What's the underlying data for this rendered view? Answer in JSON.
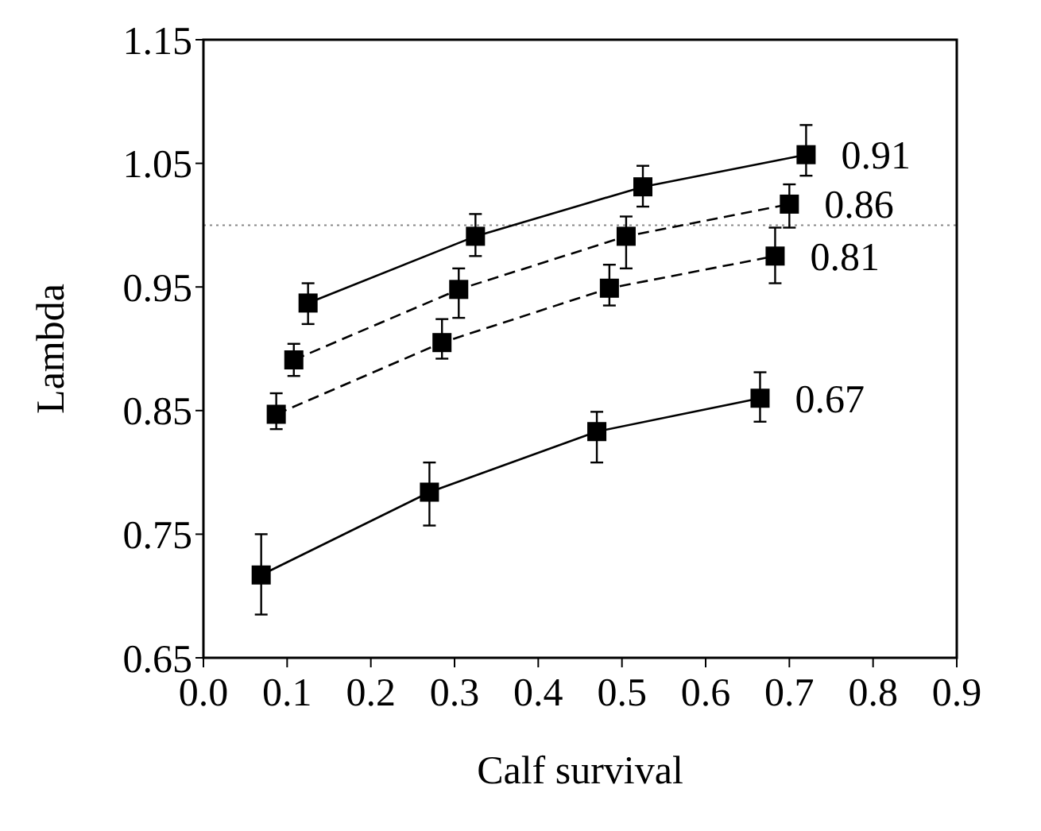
{
  "chart_data": {
    "type": "line",
    "xlabel": "Calf survival",
    "ylabel": "Lambda",
    "xlim": [
      0,
      0.9
    ],
    "xticks": [
      {
        "value": 0,
        "label": "0.0"
      },
      0.1,
      0.2,
      0.3,
      0.4,
      0.5,
      0.6,
      0.7,
      0.8,
      0.9
    ],
    "ylim": [
      0.65,
      1.15
    ],
    "yticks": [
      0.65,
      0.75,
      0.85,
      0.95,
      1.05,
      1.15
    ],
    "marker": "square",
    "grid": false,
    "legend": false,
    "ref_lines": [
      {
        "axis": "y",
        "value": 1.0,
        "line_style": "dotted",
        "color": "#888888"
      }
    ],
    "series": [
      {
        "name": "0.91",
        "color": "#000000",
        "line_style": "solid",
        "x": [
          0.125,
          0.325,
          0.525,
          0.72
        ],
        "values": [
          0.937,
          0.991,
          1.031,
          1.057
        ],
        "errors": [
          [
            0.92,
            0.953
          ],
          [
            0.975,
            1.009
          ],
          [
            1.015,
            1.048
          ],
          [
            1.04,
            1.081
          ]
        ]
      },
      {
        "name": "0.86",
        "color": "#000000",
        "line_style": "dashed",
        "x": [
          0.108,
          0.305,
          0.505,
          0.7
        ],
        "values": [
          0.891,
          0.948,
          0.991,
          1.017
        ],
        "errors": [
          [
            0.878,
            0.904
          ],
          [
            0.925,
            0.965
          ],
          [
            0.965,
            1.007
          ],
          [
            0.998,
            1.033
          ]
        ]
      },
      {
        "name": "0.81",
        "color": "#000000",
        "line_style": "dashed",
        "x": [
          0.087,
          0.285,
          0.485,
          0.683
        ],
        "values": [
          0.847,
          0.905,
          0.949,
          0.975
        ],
        "errors": [
          [
            0.835,
            0.864
          ],
          [
            0.892,
            0.924
          ],
          [
            0.935,
            0.968
          ],
          [
            0.953,
            0.998
          ]
        ]
      },
      {
        "name": "0.67",
        "color": "#000000",
        "line_style": "solid",
        "x": [
          0.069,
          0.27,
          0.47,
          0.665
        ],
        "values": [
          0.717,
          0.784,
          0.833,
          0.86
        ],
        "errors": [
          [
            0.685,
            0.75
          ],
          [
            0.757,
            0.808
          ],
          [
            0.808,
            0.849
          ],
          [
            0.841,
            0.881
          ]
        ]
      }
    ]
  }
}
